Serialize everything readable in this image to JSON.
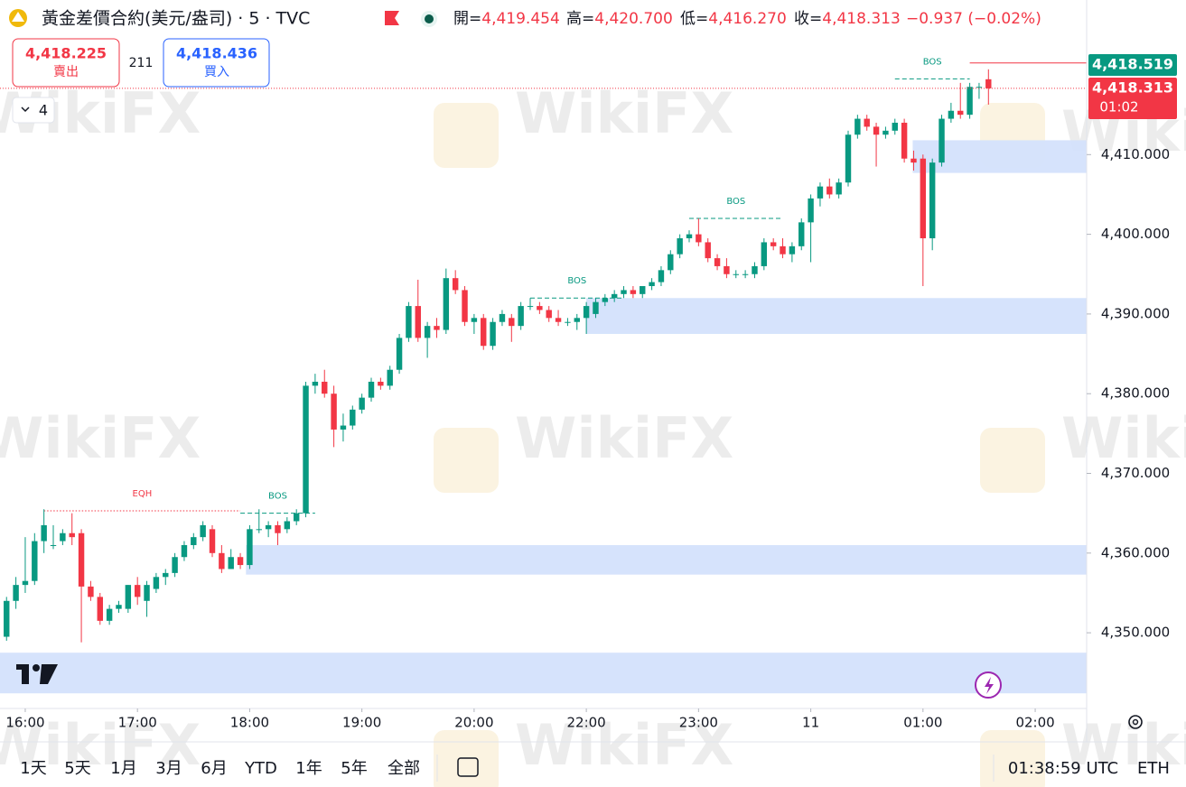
{
  "header": {
    "title": "黃金差價合約(美元/盎司) · 5 · TVC",
    "ohlc": [
      {
        "label": "開=",
        "value": "4,419.454"
      },
      {
        "label": "高=",
        "value": "4,420.700"
      },
      {
        "label": "低=",
        "value": "4,416.270"
      },
      {
        "label": "收=",
        "value": "4,418.313"
      }
    ],
    "change": "−0.937 (−0.02%)",
    "sell": {
      "price": "4,418.225",
      "label": "賣出"
    },
    "spread": "211",
    "buy": {
      "price": "4,418.436",
      "label": "買入"
    },
    "indicators": "4"
  },
  "price_tags": {
    "high_line": "4,418.519",
    "last": "4,418.313",
    "countdown": "01:02"
  },
  "watermark": "WikiFX",
  "chart_data": {
    "type": "candlestick",
    "up_color": "#089981",
    "down_color": "#f23645",
    "open": [
      4349.5,
      4354,
      4356,
      4356.5,
      4361.5,
      4361,
      4361.5,
      4362.5,
      4362.5,
      4355.8,
      4354.5,
      4351.5,
      4353,
      4353,
      4356,
      4354,
      4355.5,
      4357,
      4357.5,
      4359.5,
      4361,
      4362,
      4363,
      4360,
      4358,
      4359.5,
      4358.5,
      4363,
      4363,
      4363.5,
      4363,
      4364,
      4365,
      4381,
      4381.5,
      4380,
      4375.5,
      4376,
      4378,
      4379.5,
      4381.5,
      4381,
      4383,
      4387,
      4391,
      4387,
      4388.5,
      4388,
      4394.5,
      4393,
      4389,
      4389.5,
      4386,
      4389,
      4389.5,
      4388.5,
      4391,
      4391,
      4390.5,
      4389.5,
      4389,
      4389,
      4389.5,
      4390,
      4391.5,
      4392,
      4392.5,
      4393,
      4392.5,
      4393.5,
      4394,
      4395.5,
      4397.5,
      4399.5,
      4400,
      4399,
      4397,
      4396,
      4395,
      4395,
      4395,
      4396,
      4399,
      4398.5,
      4397.5,
      4398.5,
      4401.5,
      4404.5,
      4406,
      4405,
      4406.5,
      4412.5,
      4414.5,
      4413.5,
      4412.5,
      4413,
      4414,
      4409.5,
      4409.5,
      4399.5,
      4409,
      4414.5,
      4415.5,
      4415,
      4418.5,
      4419.454
    ],
    "high": [
      4354.5,
      4357,
      4362,
      4362.5,
      4365.5,
      4363.5,
      4363,
      4365,
      4363,
      4356.5,
      4355,
      4353.5,
      4354,
      4356,
      4357,
      4356.5,
      4357.5,
      4358,
      4360,
      4361.5,
      4362.5,
      4364,
      4363.5,
      4361,
      4360.5,
      4360,
      4363.5,
      4365.5,
      4364,
      4364,
      4364.5,
      4365.5,
      4381.5,
      4382.5,
      4383,
      4381,
      4377.5,
      4378.5,
      4380,
      4382,
      4382,
      4383.5,
      4387.5,
      4391.5,
      4394.3,
      4389,
      4389.5,
      4395.7,
      4395.5,
      4393.5,
      4390,
      4390,
      4389.5,
      4390.5,
      4390,
      4391.5,
      4392,
      4391.5,
      4391,
      4390.5,
      4389.5,
      4390,
      4391.5,
      4392,
      4392.5,
      4393,
      4393.5,
      4393.5,
      4393.5,
      4394.5,
      4396,
      4398,
      4400,
      4400.5,
      4402,
      4399.5,
      4397.5,
      4397,
      4395.5,
      4395.5,
      4396.5,
      4399.5,
      4399.5,
      4399.5,
      4399,
      4402,
      4405,
      4406.5,
      4407,
      4407,
      4413,
      4415,
      4415,
      4414,
      4413.5,
      4414.5,
      4414.5,
      4410.5,
      4410,
      4409.5,
      4415,
      4416.5,
      4419,
      4419,
      4419,
      4420.7
    ],
    "low": [
      4349,
      4353,
      4355,
      4356,
      4360,
      4360.5,
      4361,
      4361,
      4348.8,
      4354,
      4351,
      4351,
      4352.5,
      4352.5,
      4353.5,
      4352,
      4355,
      4356,
      4357,
      4359,
      4360.5,
      4361.5,
      4359.5,
      4357.5,
      4358,
      4358,
      4358,
      4362.5,
      4362,
      4361,
      4362.5,
      4363.5,
      4364.5,
      4380,
      4379.5,
      4373.3,
      4374,
      4375.5,
      4377.5,
      4379,
      4380.5,
      4380.5,
      4382.5,
      4386.5,
      4386.5,
      4384.5,
      4387,
      4387.5,
      4392.5,
      4388.5,
      4387.5,
      4385.5,
      4385.5,
      4388.5,
      4386.5,
      4388,
      4390.5,
      4390,
      4389,
      4388.5,
      4388.5,
      4388,
      4387.5,
      4389.5,
      4391,
      4391.5,
      4392,
      4392,
      4392,
      4393,
      4393.5,
      4395,
      4397,
      4399,
      4398.5,
      4396.5,
      4395.5,
      4394.5,
      4394.5,
      4394.5,
      4394.5,
      4395.5,
      4398,
      4397,
      4396.5,
      4398,
      4396.5,
      4403.5,
      4404.5,
      4404.5,
      4406,
      4412,
      4413,
      4408.5,
      4412,
      4412.5,
      4409,
      4408,
      4393.5,
      4398,
      4408.5,
      4414,
      4414.5,
      4414.5,
      4417,
      4416.27
    ],
    "close": [
      4354,
      4356,
      4356.5,
      4361.5,
      4363.5,
      4361,
      4362.5,
      4362,
      4355.8,
      4354.5,
      4351.5,
      4353,
      4353.5,
      4356,
      4354.5,
      4356,
      4357,
      4357.5,
      4359.5,
      4361,
      4362,
      4363.5,
      4360,
      4358,
      4359.5,
      4358.5,
      4363,
      4363,
      4363.5,
      4362.5,
      4364,
      4365,
      4381,
      4381.5,
      4380,
      4375.5,
      4376,
      4378,
      4379.5,
      4381.5,
      4381,
      4383,
      4387,
      4391,
      4387,
      4388.5,
      4388,
      4394.5,
      4393,
      4389,
      4389.5,
      4386,
      4389,
      4390,
      4388.5,
      4391,
      4391,
      4390.5,
      4389.5,
      4389,
      4389,
      4389.5,
      4391,
      4391.5,
      4392,
      4392.5,
      4393,
      4392.5,
      4393.5,
      4394,
      4395.5,
      4397.5,
      4399.5,
      4400,
      4399,
      4397,
      4396,
      4395,
      4395,
      4395,
      4396,
      4399,
      4398.5,
      4397.5,
      4398.5,
      4401.5,
      4404.5,
      4406,
      4405,
      4406.5,
      4412.5,
      4414.5,
      4413.5,
      4412.5,
      4413,
      4414,
      4409.5,
      4409,
      4399.5,
      4409,
      4414.5,
      4415.5,
      4415,
      4418.5,
      4418.5,
      4418.313
    ],
    "xlim": [
      -0.7,
      115.5
    ],
    "xticks": [
      {
        "value": 2,
        "label": "16:00"
      },
      {
        "value": 14,
        "label": "17:00"
      },
      {
        "value": 26,
        "label": "18:00"
      },
      {
        "value": 38,
        "label": "19:00"
      },
      {
        "value": 50,
        "label": "20:00"
      },
      {
        "value": 62,
        "label": "22:00"
      },
      {
        "value": 74,
        "label": "23:00"
      },
      {
        "value": 86,
        "label": "11"
      },
      {
        "value": 98,
        "label": "01:00"
      },
      {
        "value": 110,
        "label": "02:00"
      }
    ],
    "ylim": [
      4340.5,
      4429.4
    ],
    "yticks": [
      {
        "value": 4350,
        "label": "4,350.000"
      },
      {
        "value": 4360,
        "label": "4,360.000"
      },
      {
        "value": 4370,
        "label": "4,370.000"
      },
      {
        "value": 4380,
        "label": "4,380.000"
      },
      {
        "value": 4390,
        "label": "4,390.000"
      },
      {
        "value": 4400,
        "label": "4,400.000"
      },
      {
        "value": 4410,
        "label": "4,410.000"
      }
    ],
    "zone_color": "#d4e1fc",
    "zones": [
      {
        "from": 96.9,
        "low": 4407.7,
        "high": 4411.8
      },
      {
        "from": 62,
        "low": 4387.5,
        "high": 4392
      },
      {
        "from": 25.6,
        "low": 4357.3,
        "high": 4361
      },
      {
        "from": -0.7,
        "low": 4342.4,
        "high": 4347.5
      }
    ],
    "levels": [
      {
        "label": "EQH",
        "value": 4365.3,
        "from": 4,
        "to": 25,
        "color": "#f23645",
        "style": "dotted"
      },
      {
        "label": "BOS",
        "value": 4365,
        "from": 25,
        "to": 33,
        "color": "#089981",
        "style": "dashed"
      },
      {
        "label": "BOS",
        "value": 4392,
        "from": 56,
        "to": 66,
        "color": "#089981",
        "style": "dashed"
      },
      {
        "label": "BOS",
        "value": 4402,
        "from": 73,
        "to": 83,
        "color": "#089981",
        "style": "dashed"
      },
      {
        "label": "BOS",
        "value": 4419.5,
        "from": 95,
        "to": 103,
        "color": "#089981",
        "style": "dashed"
      },
      {
        "value": 4421.5,
        "from": 103,
        "to": 115.5,
        "color": "#f23645",
        "style": "solid"
      }
    ]
  },
  "toolbar": {
    "ranges": [
      "1天",
      "5天",
      "1月",
      "3月",
      "6月",
      "YTD",
      "1年",
      "5年",
      "全部"
    ],
    "clock": "01:38:59 UTC",
    "session": "ETH"
  }
}
